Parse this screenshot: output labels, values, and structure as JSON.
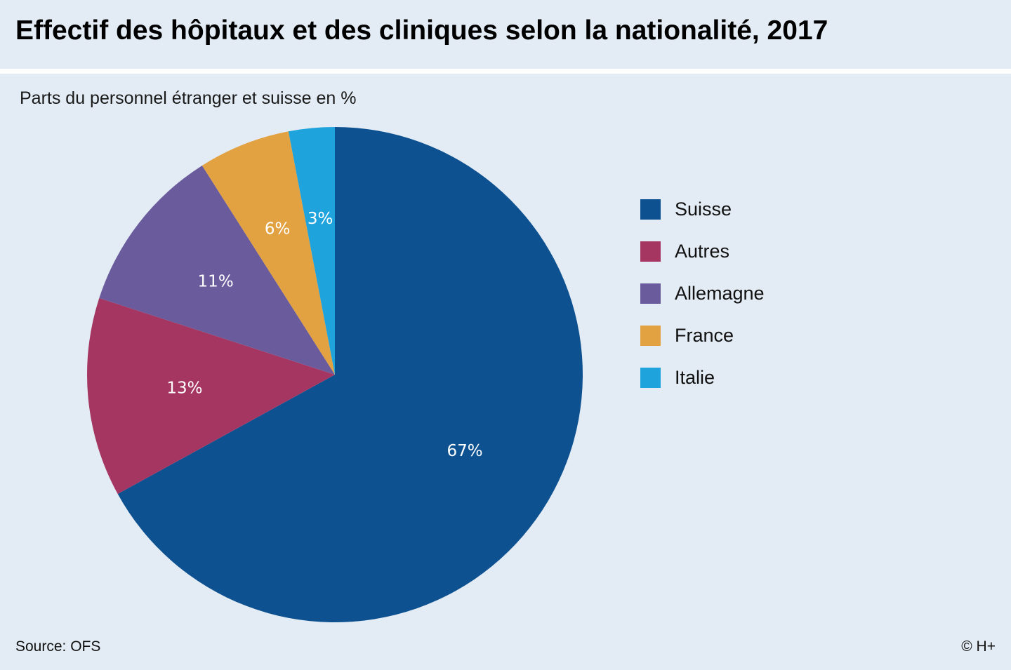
{
  "title": "Effectif des hôpitaux et des cliniques selon la nationalité, 2017",
  "subtitle": "Parts du personnel étranger et suisse en %",
  "source": "Source: OFS",
  "copyright": "© H+",
  "chart_data": {
    "type": "pie",
    "start": "12 o'clock",
    "direction": "clockwise",
    "slices": [
      {
        "name": "Suisse",
        "value": 67,
        "label": "67%",
        "color": "#0e5190"
      },
      {
        "name": "Autres",
        "value": 13,
        "label": "13%",
        "color": "#a53661"
      },
      {
        "name": "Allemagne",
        "value": 11,
        "label": "11%",
        "color": "#6a5b9c"
      },
      {
        "name": "France",
        "value": 6,
        "label": "6%",
        "color": "#e2a242"
      },
      {
        "name": "Italie",
        "value": 3,
        "label": "3%",
        "color": "#1ea3dc"
      }
    ],
    "legend": "right"
  }
}
